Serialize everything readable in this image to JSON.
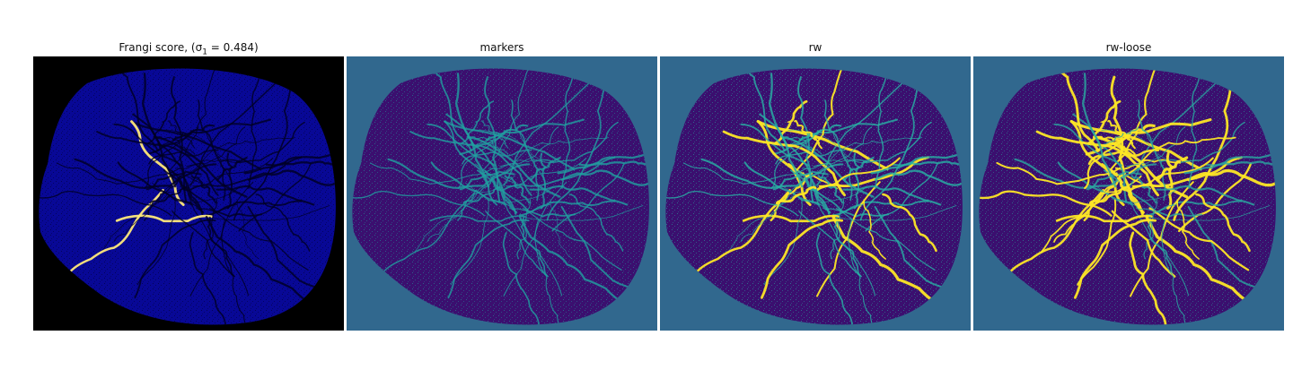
{
  "figure": {
    "panels": [
      {
        "title_main": "Frangi score, ",
        "title_math": "(σ",
        "title_sub": "1",
        "title_tail": " = 0.484)",
        "background_color": "#000000",
        "blob_color": "#080896",
        "vein_color": "#000022",
        "highlight_color": "#ffe97a",
        "highlight_level": 0.05
      },
      {
        "title": "markers",
        "background_color": "#31688e",
        "blob_color": "#3b0f6f",
        "vein_color": "#20a0a0",
        "highlight_color": "#fde725",
        "highlight_level": 0.0
      },
      {
        "title": "rw",
        "background_color": "#31688e",
        "blob_color": "#3b0f6f",
        "vein_color": "#28b3a5",
        "highlight_color": "#fde725",
        "highlight_level": 0.25
      },
      {
        "title": "rw-loose",
        "background_color": "#31688e",
        "blob_color": "#3b0f6f",
        "vein_color": "#2aa9a0",
        "highlight_color": "#fde725",
        "highlight_level": 0.7
      }
    ]
  }
}
